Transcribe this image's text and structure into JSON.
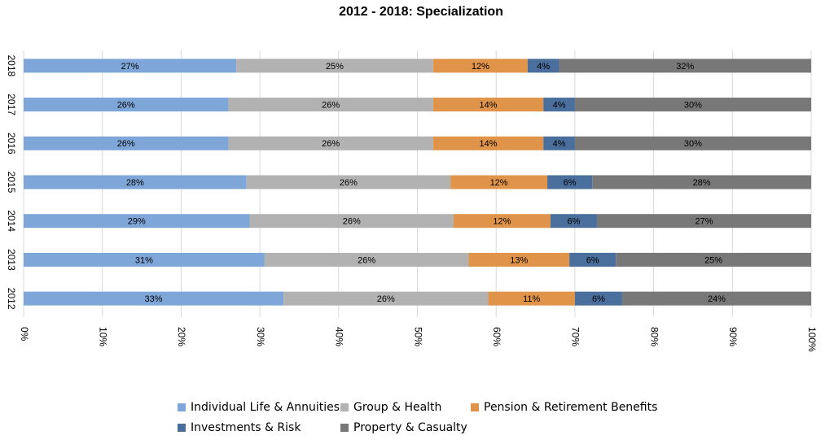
{
  "chart_data": {
    "type": "stacked-barh",
    "title": "2012 - 2018: Specialization",
    "categories": [
      "2018",
      "2017",
      "2016",
      "2015",
      "2014",
      "2013",
      "2012"
    ],
    "series": [
      {
        "name": "Individual Life & Annuities",
        "color": "#7ea6d8",
        "values": [
          27,
          26,
          26,
          28.3,
          28.7,
          30.6,
          33
        ],
        "value_labels": [
          "27%",
          "26%",
          "26%",
          "28%",
          "29%",
          "31%",
          "33%"
        ]
      },
      {
        "name": "Group & Health",
        "color": "#b2b2b2",
        "values": [
          25,
          26,
          26,
          25.9,
          25.9,
          25.9,
          26
        ],
        "value_labels": [
          "25%",
          "26%",
          "26%",
          "26%",
          "26%",
          "26%",
          "26%"
        ]
      },
      {
        "name": "Pension & Retirement Benefits",
        "color": "#e0944a",
        "values": [
          12,
          14,
          14,
          12.3,
          12.3,
          12.8,
          11
        ],
        "value_labels": [
          "12%",
          "14%",
          "14%",
          "12%",
          "12%",
          "13%",
          "11%"
        ]
      },
      {
        "name": "Investments & Risk",
        "color": "#4a6f9c",
        "values": [
          4,
          4,
          4,
          5.7,
          5.9,
          5.9,
          6
        ],
        "value_labels": [
          "4%",
          "4%",
          "4%",
          "6%",
          "6%",
          "6%",
          "6%"
        ]
      },
      {
        "name": "Property & Casualty",
        "color": "#787878",
        "values": [
          32,
          30,
          30,
          27.8,
          27.2,
          24.8,
          24
        ],
        "value_labels": [
          "32%",
          "30%",
          "30%",
          "28%",
          "27%",
          "25%",
          "24%"
        ]
      }
    ],
    "xlim": [
      0,
      100
    ],
    "xticks": [
      {
        "value": 0,
        "label": "0%"
      },
      {
        "value": 10,
        "label": "10%"
      },
      {
        "value": 20,
        "label": "20%"
      },
      {
        "value": 30,
        "label": "30%"
      },
      {
        "value": 40,
        "label": "40%"
      },
      {
        "value": 50,
        "label": "50%"
      },
      {
        "value": 60,
        "label": "60%"
      },
      {
        "value": 70,
        "label": "70%"
      },
      {
        "value": 80,
        "label": "80%"
      },
      {
        "value": 90,
        "label": "90%"
      },
      {
        "value": 100,
        "label": "100%"
      }
    ],
    "grid": true,
    "legend": "bottom"
  }
}
